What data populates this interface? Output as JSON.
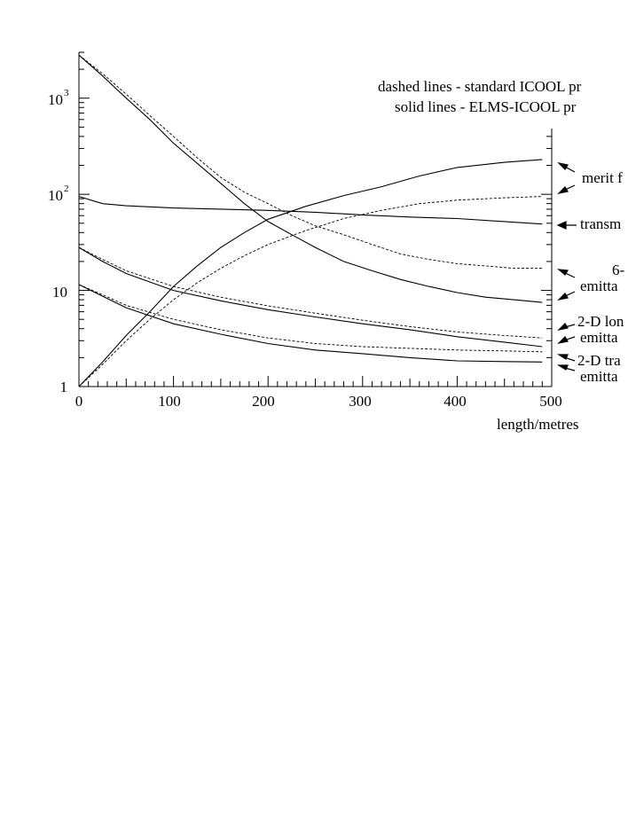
{
  "chart_data": {
    "type": "line",
    "xlabel": "length/metres",
    "ylabel": "",
    "xlim": [
      0,
      500
    ],
    "ylim": [
      1,
      3000
    ],
    "yscale": "log",
    "x_ticks": [
      {
        "value": 0,
        "label": "0"
      },
      {
        "value": 100,
        "label": "100"
      },
      {
        "value": 200,
        "label": "200"
      },
      {
        "value": 300,
        "label": "300"
      },
      {
        "value": 400,
        "label": "400"
      },
      {
        "value": 500,
        "label": "500"
      }
    ],
    "y_ticks": [
      {
        "value": 1,
        "label": "1"
      },
      {
        "value": 10,
        "label": "10"
      },
      {
        "value": 100,
        "label": "10",
        "exp": "2"
      },
      {
        "value": 1000,
        "label": "10",
        "exp": "3"
      }
    ],
    "legend_lines": [
      "dashed lines - standard ICOOL pr",
      "solid lines - ELMS-ICOOL pr"
    ],
    "annotations": {
      "merit": "merit f",
      "transmission": "transm",
      "six_d_a": "6-",
      "six_d_b": "emitta",
      "long_a": "2-D lon",
      "long_b": "emitta",
      "trans_a": "2-D tra",
      "trans_b": "emitta"
    },
    "series": [
      {
        "style": "solid",
        "x": [
          0,
          25,
          50,
          75,
          100,
          125,
          150,
          175,
          200,
          225,
          250,
          280,
          310,
          340,
          370,
          400,
          430,
          460,
          490
        ],
        "y": [
          2800,
          1700,
          1000,
          600,
          340,
          210,
          130,
          80,
          52,
          38,
          28,
          20,
          16,
          13,
          11,
          9.5,
          8.5,
          8,
          7.5
        ]
      },
      {
        "style": "dashed",
        "x": [
          0,
          25,
          50,
          75,
          100,
          125,
          150,
          175,
          200,
          225,
          250,
          280,
          310,
          340,
          370,
          400,
          430,
          460,
          490
        ],
        "y": [
          2800,
          1800,
          1100,
          660,
          400,
          240,
          150,
          105,
          80,
          60,
          47,
          38,
          30,
          24,
          21,
          19,
          18,
          17,
          17
        ]
      },
      {
        "style": "solid",
        "x": [
          0,
          25,
          50,
          100,
          150,
          200,
          250,
          300,
          350,
          400,
          450,
          490
        ],
        "y": [
          95,
          80,
          76,
          72,
          70,
          68,
          65,
          61,
          58,
          56,
          52,
          49
        ]
      },
      {
        "style": "solid",
        "x": [
          0,
          25,
          50,
          75,
          100,
          125,
          150,
          175,
          200,
          240,
          280,
          320,
          360,
          400,
          450,
          490
        ],
        "y": [
          1,
          1.8,
          3.4,
          6,
          11,
          18,
          28,
          40,
          55,
          75,
          97,
          120,
          155,
          190,
          215,
          230
        ]
      },
      {
        "style": "dashed",
        "x": [
          0,
          25,
          50,
          75,
          100,
          125,
          150,
          175,
          200,
          240,
          280,
          320,
          360,
          400,
          450,
          490
        ],
        "y": [
          1,
          1.7,
          3,
          5,
          8,
          12,
          17,
          23,
          30,
          42,
          56,
          68,
          80,
          87,
          92,
          95
        ]
      },
      {
        "style": "solid",
        "x": [
          0,
          25,
          50,
          100,
          150,
          200,
          250,
          300,
          350,
          400,
          450,
          490
        ],
        "y": [
          28,
          20,
          15,
          10,
          7.8,
          6.3,
          5.3,
          4.5,
          3.9,
          3.3,
          2.9,
          2.6
        ]
      },
      {
        "style": "dashed",
        "x": [
          0,
          25,
          50,
          100,
          150,
          200,
          250,
          300,
          350,
          400,
          450,
          490
        ],
        "y": [
          28,
          21,
          16,
          11,
          8.5,
          6.9,
          5.8,
          4.9,
          4.2,
          3.7,
          3.4,
          3.2
        ]
      },
      {
        "style": "solid",
        "x": [
          0,
          25,
          50,
          100,
          150,
          200,
          250,
          300,
          350,
          400,
          450,
          490
        ],
        "y": [
          11.5,
          8.7,
          6.6,
          4.5,
          3.5,
          2.8,
          2.4,
          2.2,
          2.0,
          1.85,
          1.82,
          1.8
        ]
      },
      {
        "style": "dashed",
        "x": [
          0,
          25,
          50,
          100,
          150,
          200,
          250,
          300,
          350,
          400,
          450,
          490
        ],
        "y": [
          11.5,
          9,
          7,
          5,
          3.9,
          3.2,
          2.8,
          2.6,
          2.5,
          2.4,
          2.35,
          2.3
        ]
      }
    ]
  }
}
